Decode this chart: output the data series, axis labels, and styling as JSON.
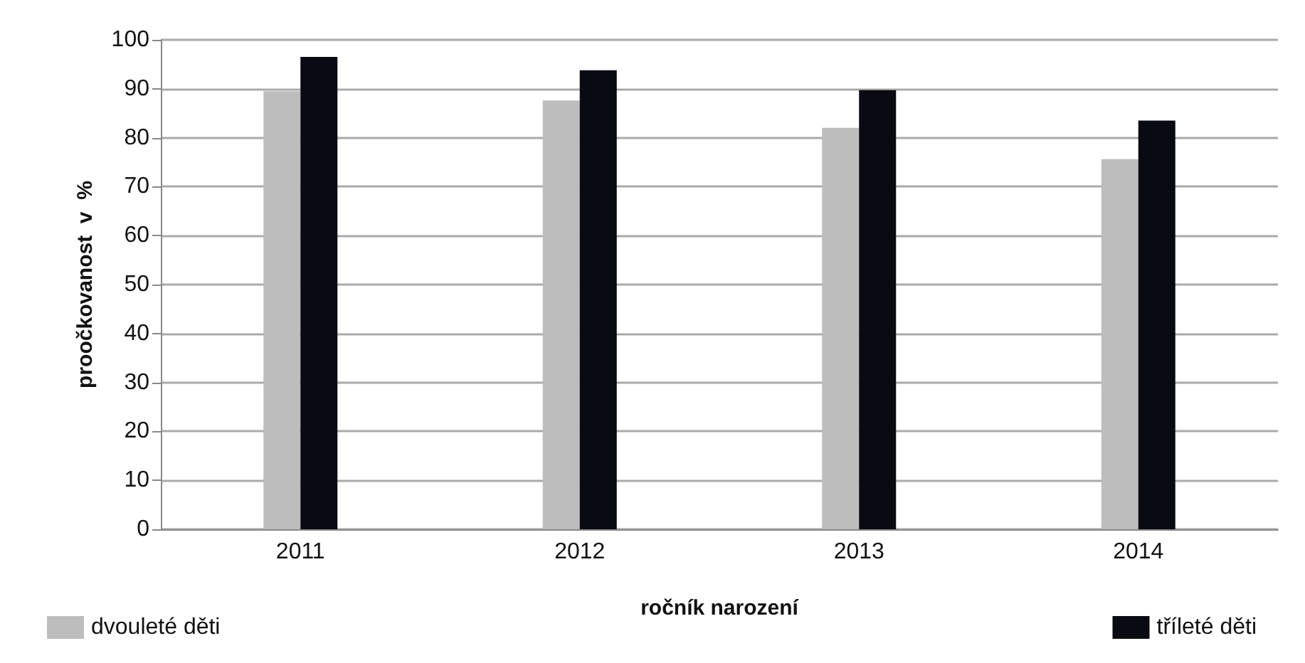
{
  "chart_data": {
    "type": "bar",
    "categories": [
      "2011",
      "2012",
      "2013",
      "2014"
    ],
    "series": [
      {
        "name": "dvouleté děti",
        "color": "#bdbdbd",
        "values": [
          89.5,
          87.6,
          82,
          75.6
        ]
      },
      {
        "name": "tříleté děti",
        "color": "#0a0a12",
        "values": [
          96.5,
          93.8,
          89.7,
          83.5
        ]
      }
    ],
    "xlabel": "ročník narození",
    "ylabel": "proočkovanost  v  %",
    "ylim": [
      0,
      100
    ],
    "yticks": [
      0,
      10,
      20,
      30,
      40,
      50,
      60,
      70,
      80,
      90,
      100
    ],
    "grid": "y",
    "legend": "bottom"
  }
}
